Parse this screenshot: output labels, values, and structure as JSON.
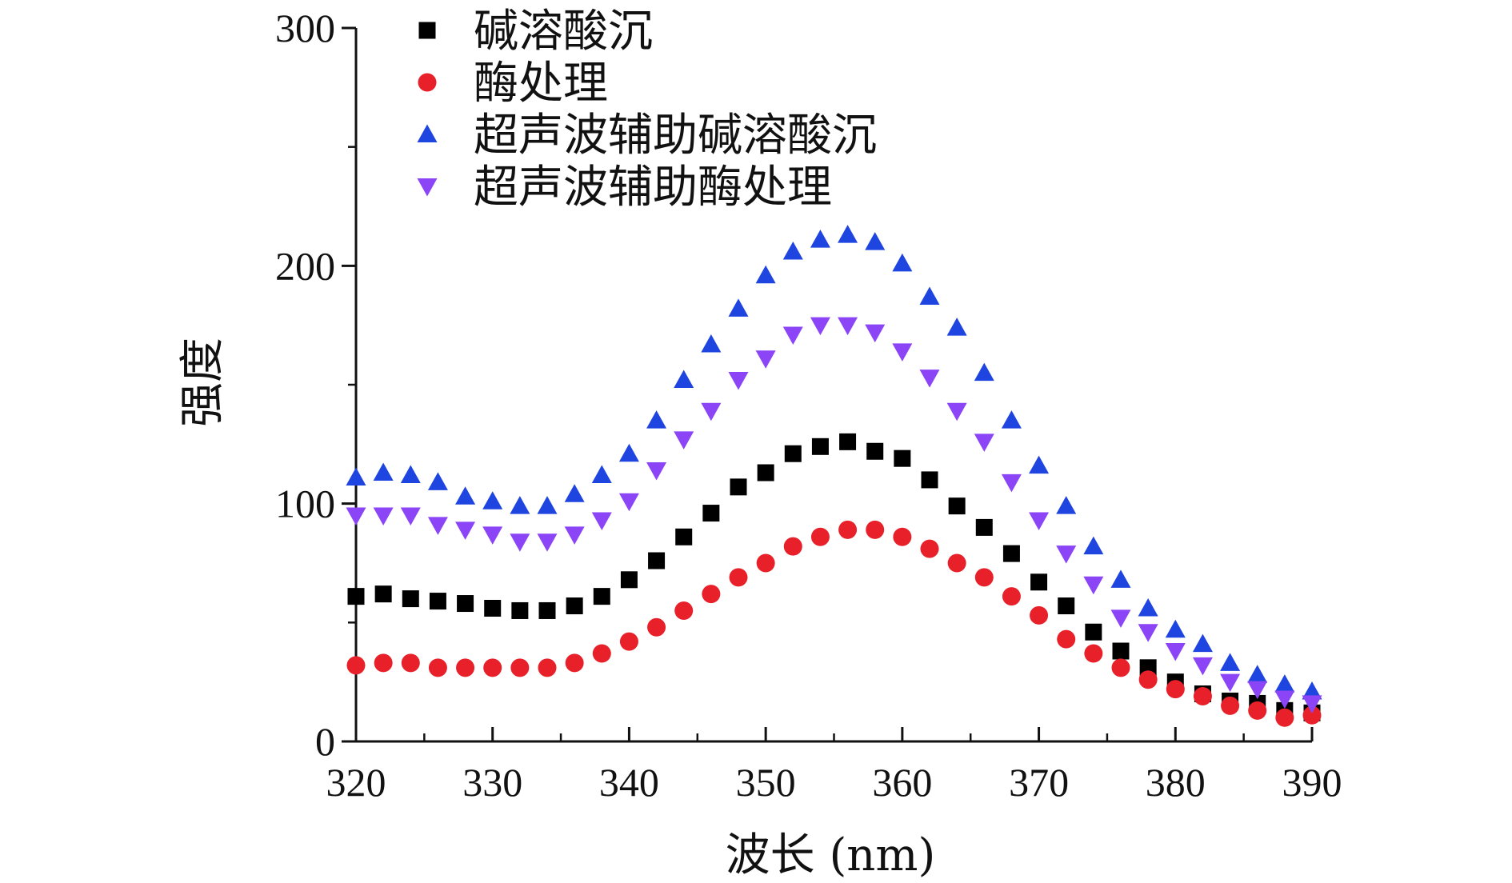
{
  "chart_data": {
    "type": "scatter",
    "xlabel": "波长 (nm)",
    "ylabel": "强度",
    "xlim": [
      320,
      390
    ],
    "ylim": [
      0,
      300
    ],
    "x_ticks": [
      "320",
      "330",
      "340",
      "350",
      "360",
      "370",
      "380",
      "390"
    ],
    "y_ticks": [
      "0",
      "100",
      "200",
      "300"
    ],
    "legend_position": "top-left",
    "grid": false,
    "x": [
      320,
      322,
      324,
      326,
      328,
      330,
      332,
      334,
      336,
      338,
      340,
      342,
      344,
      346,
      348,
      350,
      352,
      354,
      356,
      358,
      360,
      362,
      364,
      366,
      368,
      370,
      372,
      374,
      376,
      378,
      380,
      382,
      384,
      386,
      388,
      390
    ],
    "series": [
      {
        "name": "碱溶酸沉",
        "marker": "square",
        "color": "#000000",
        "values": [
          61,
          62,
          60,
          59,
          58,
          56,
          55,
          55,
          57,
          61,
          68,
          76,
          86,
          96,
          107,
          113,
          121,
          124,
          126,
          122,
          119,
          110,
          99,
          90,
          79,
          67,
          57,
          46,
          38,
          31,
          25,
          20,
          17,
          16,
          13,
          12
        ]
      },
      {
        "name": "酶处理",
        "marker": "circle",
        "color": "#e8202a",
        "values": [
          32,
          33,
          33,
          31,
          31,
          31,
          31,
          31,
          33,
          37,
          42,
          48,
          55,
          62,
          69,
          75,
          82,
          86,
          89,
          89,
          86,
          81,
          75,
          69,
          61,
          53,
          43,
          37,
          31,
          26,
          22,
          19,
          15,
          13,
          10,
          11
        ]
      },
      {
        "name": "超声波辅助碱溶酸沉",
        "marker": "triangle-up",
        "color": "#1f45e0",
        "values": [
          111,
          113,
          112,
          109,
          103,
          101,
          99,
          99,
          104,
          112,
          121,
          135,
          152,
          167,
          182,
          196,
          206,
          211,
          213,
          210,
          201,
          187,
          174,
          155,
          135,
          116,
          99,
          82,
          68,
          56,
          47,
          41,
          33,
          28,
          24,
          21
        ]
      },
      {
        "name": "超声波辅助酶处理",
        "marker": "triangle-down",
        "color": "#8b44f6",
        "values": [
          95,
          95,
          95,
          91,
          89,
          87,
          84,
          84,
          87,
          93,
          101,
          114,
          127,
          139,
          152,
          161,
          171,
          175,
          175,
          172,
          164,
          153,
          139,
          126,
          109,
          93,
          79,
          66,
          52,
          46,
          38,
          32,
          25,
          22,
          18,
          16
        ]
      }
    ]
  }
}
